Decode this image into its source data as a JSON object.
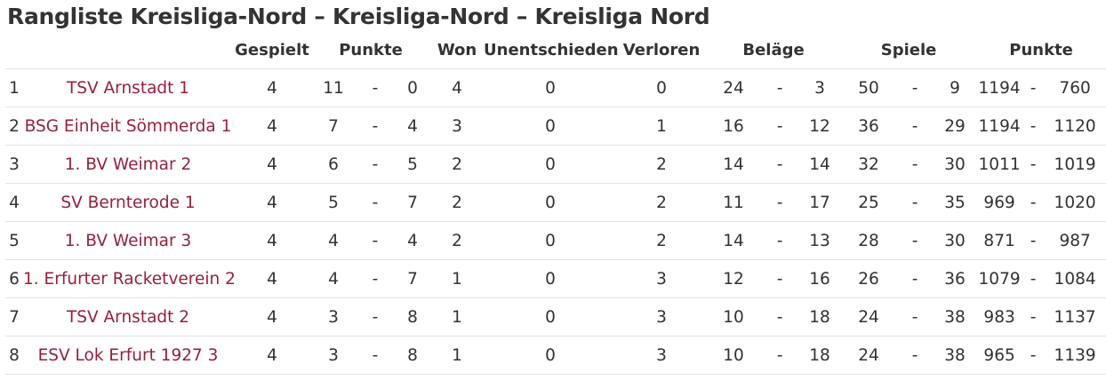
{
  "title": "Rangliste Kreisliga-Nord – Kreisliga-Nord – Kreisliga Nord",
  "headers": {
    "gespielt": "Gespielt",
    "punkte": "Punkte",
    "won": "Won",
    "unentschieden": "Unentschieden",
    "verloren": "Verloren",
    "belaege": "Beläge",
    "spiele": "Spiele",
    "punkte2": "Punkte"
  },
  "separator": "-",
  "rows": [
    {
      "rank": "1",
      "team": "TSV Arnstadt 1",
      "played": "4",
      "pts_for": "11",
      "pts_against": "0",
      "won": "4",
      "draw": "0",
      "lost": "0",
      "bel_for": "24",
      "bel_against": "3",
      "sp_for": "50",
      "sp_against": "9",
      "p_for": "1194",
      "p_against": "760"
    },
    {
      "rank": "2",
      "team": "BSG Einheit Sömmerda 1",
      "played": "4",
      "pts_for": "7",
      "pts_against": "4",
      "won": "3",
      "draw": "0",
      "lost": "1",
      "bel_for": "16",
      "bel_against": "12",
      "sp_for": "36",
      "sp_against": "29",
      "p_for": "1194",
      "p_against": "1120"
    },
    {
      "rank": "3",
      "team": "1. BV Weimar 2",
      "played": "4",
      "pts_for": "6",
      "pts_against": "5",
      "won": "2",
      "draw": "0",
      "lost": "2",
      "bel_for": "14",
      "bel_against": "14",
      "sp_for": "32",
      "sp_against": "30",
      "p_for": "1011",
      "p_against": "1019"
    },
    {
      "rank": "4",
      "team": "SV Bernterode 1",
      "played": "4",
      "pts_for": "5",
      "pts_against": "7",
      "won": "2",
      "draw": "0",
      "lost": "2",
      "bel_for": "11",
      "bel_against": "17",
      "sp_for": "25",
      "sp_against": "35",
      "p_for": "969",
      "p_against": "1020"
    },
    {
      "rank": "5",
      "team": "1. BV Weimar 3",
      "played": "4",
      "pts_for": "4",
      "pts_against": "4",
      "won": "2",
      "draw": "0",
      "lost": "2",
      "bel_for": "14",
      "bel_against": "13",
      "sp_for": "28",
      "sp_against": "30",
      "p_for": "871",
      "p_against": "987"
    },
    {
      "rank": "6",
      "team": "1. Erfurter Racketverein 2",
      "played": "4",
      "pts_for": "4",
      "pts_against": "7",
      "won": "1",
      "draw": "0",
      "lost": "3",
      "bel_for": "12",
      "bel_against": "16",
      "sp_for": "26",
      "sp_against": "36",
      "p_for": "1079",
      "p_against": "1084"
    },
    {
      "rank": "7",
      "team": "TSV Arnstadt 2",
      "played": "4",
      "pts_for": "3",
      "pts_against": "8",
      "won": "1",
      "draw": "0",
      "lost": "3",
      "bel_for": "10",
      "bel_against": "18",
      "sp_for": "24",
      "sp_against": "38",
      "p_for": "983",
      "p_against": "1137"
    },
    {
      "rank": "8",
      "team": "ESV Lok Erfurt 1927 3",
      "played": "4",
      "pts_for": "3",
      "pts_against": "8",
      "won": "1",
      "draw": "0",
      "lost": "3",
      "bel_for": "10",
      "bel_against": "18",
      "sp_for": "24",
      "sp_against": "38",
      "p_for": "965",
      "p_against": "1139"
    }
  ]
}
